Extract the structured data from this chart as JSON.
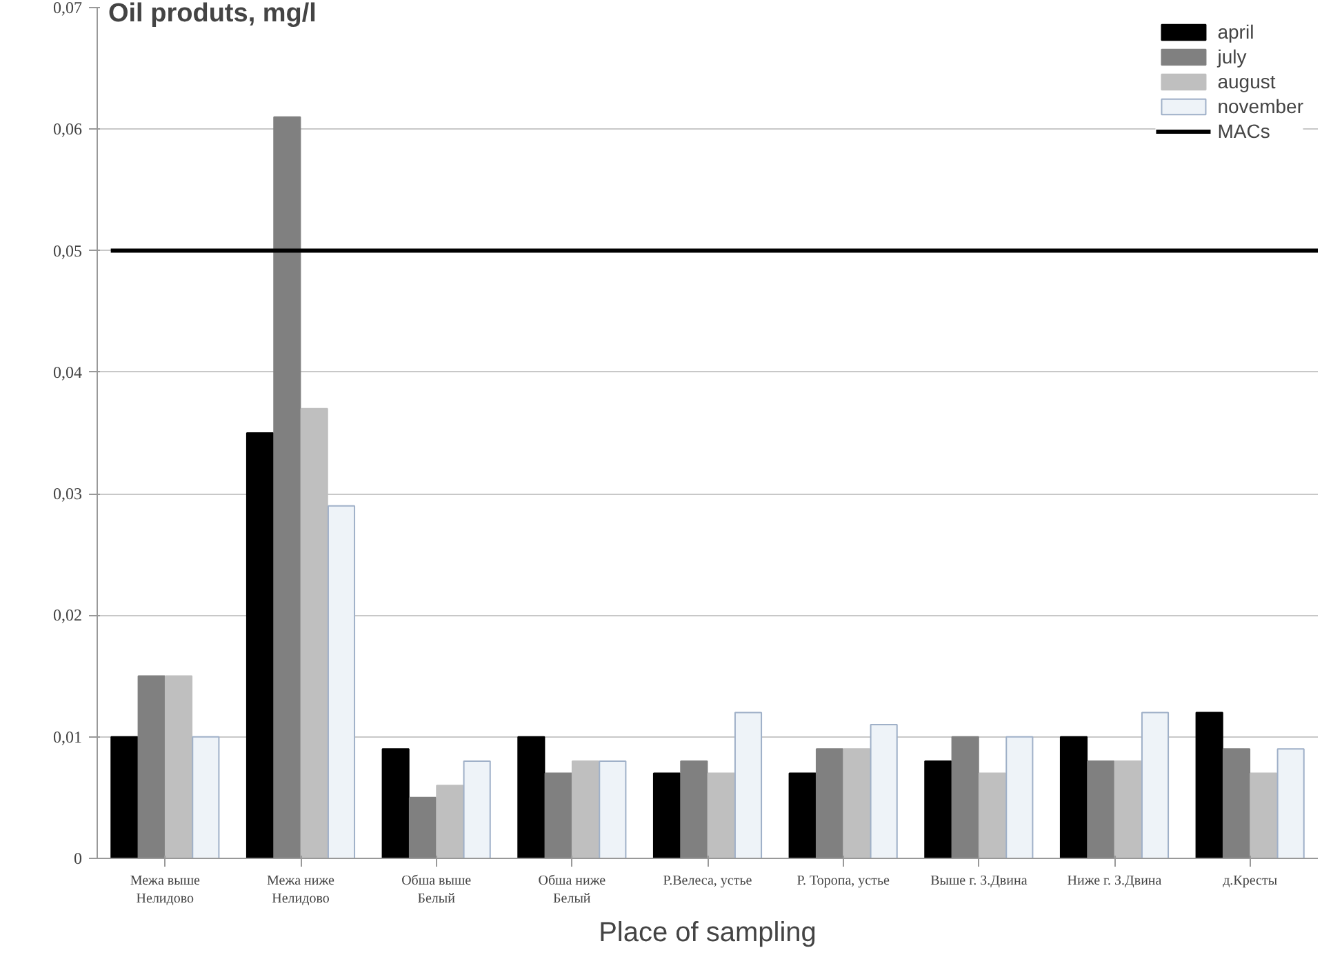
{
  "chart_data": {
    "type": "bar",
    "title": "Oil produts, mg/l",
    "xlabel": "Place of sampling",
    "categories": [
      "Межа выше\nНелидово",
      "Межа ниже\nНелидово",
      "Обша выше\nБелый",
      "Обша ниже\nБелый",
      "Р.Велеса, устье",
      "Р. Торопа, устье",
      "Выше г. З.Двина",
      "Ниже г. З.Двина",
      "д.Кресты"
    ],
    "series": [
      {
        "name": "april",
        "color": "#000000",
        "values": [
          0.01,
          0.035,
          0.009,
          0.01,
          0.007,
          0.007,
          0.008,
          0.01,
          0.012
        ]
      },
      {
        "name": "july",
        "color": "#808080",
        "values": [
          0.015,
          0.061,
          0.005,
          0.007,
          0.008,
          0.009,
          0.01,
          0.008,
          0.009
        ]
      },
      {
        "name": "august",
        "color": "#bfbfbf",
        "values": [
          0.015,
          0.037,
          0.006,
          0.008,
          0.007,
          0.009,
          0.007,
          0.008,
          0.007
        ]
      },
      {
        "name": "november",
        "color": "#eef3f8",
        "values": [
          0.01,
          0.029,
          0.008,
          0.008,
          0.012,
          0.011,
          0.01,
          0.012,
          0.009
        ]
      }
    ],
    "ref_lines": [
      {
        "axis": "y",
        "value": 0.05,
        "label": "MACs",
        "color": "#000000"
      }
    ],
    "ylim": [
      0,
      0.07
    ],
    "yticks": [
      0,
      {
        "value": 0.01,
        "label": "0,01"
      },
      {
        "value": 0.02,
        "label": "0,02"
      },
      {
        "value": 0.03,
        "label": "0,03"
      },
      {
        "value": 0.04,
        "label": "0,04"
      },
      {
        "value": 0.05,
        "label": "0,05"
      },
      {
        "value": 0.06,
        "label": "0,06"
      },
      {
        "value": 0.07,
        "label": "0,07"
      }
    ],
    "grid": "y",
    "legend": "top right"
  }
}
